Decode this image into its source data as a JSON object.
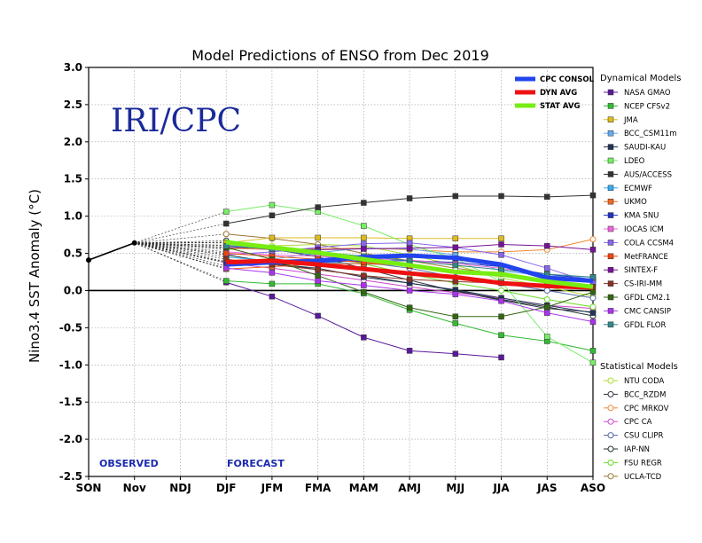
{
  "chart_data": {
    "type": "line",
    "title": "Model Predictions of ENSO from Dec 2019",
    "ylabel": "Nino3.4 SST Anomaly (°C)",
    "xlabel": "",
    "categories": [
      "SON",
      "Nov",
      "NDJ",
      "DJF",
      "JFM",
      "FMA",
      "MAM",
      "AMJ",
      "MJJ",
      "JJA",
      "JAS",
      "ASO"
    ],
    "ylim": [
      -2.5,
      3.0
    ],
    "yticks": [
      "3.0",
      "2.5",
      "2.0",
      "1.5",
      "1.0",
      "0.5",
      "0.0",
      "-0.5",
      "-1.0",
      "-1.5",
      "-2.0",
      "-2.5"
    ],
    "grid": true,
    "legend_position": "right",
    "watermark": "IRI/CPC",
    "observed_label": "OBSERVED",
    "forecast_label": "FORECAST",
    "observed": {
      "x": [
        "SON",
        "Nov"
      ],
      "values": [
        0.41,
        0.64
      ]
    },
    "headline_series": [
      {
        "name": "CPC CONSOL",
        "color": "#2244ee",
        "values": [
          0.35,
          0.38,
          0.4,
          0.45,
          0.47,
          0.44,
          0.35,
          0.17,
          0.13
        ]
      },
      {
        "name": "DYN AVG",
        "color": "#ee1111",
        "values": [
          0.38,
          0.4,
          0.35,
          0.29,
          0.23,
          0.18,
          0.1,
          0.06,
          0.04
        ]
      },
      {
        "name": "STAT AVG",
        "color": "#77ee11",
        "values": [
          0.65,
          0.58,
          0.51,
          0.42,
          0.34,
          0.25,
          0.22,
          0.12,
          0.05
        ]
      }
    ],
    "dynamical_heading": "Dynamical Models",
    "statistical_heading": "Statistical Models",
    "dynamical_models": [
      {
        "name": "NASA GMAO",
        "color": "#5a189a",
        "values": [
          0.11,
          -0.08,
          -0.34,
          -0.63,
          -0.81,
          -0.85,
          -0.9,
          null,
          null
        ]
      },
      {
        "name": "NCEP CFSv2",
        "color": "#33bb33",
        "values": [
          0.13,
          0.09,
          0.09,
          -0.04,
          -0.26,
          -0.44,
          -0.6,
          -0.68,
          -0.81
        ]
      },
      {
        "name": "JMA",
        "color": "#ddbb22",
        "values": [
          0.64,
          0.71,
          0.71,
          0.71,
          0.7,
          0.7,
          0.7,
          null,
          null
        ]
      },
      {
        "name": "BCC_CSM11m",
        "color": "#66aaee",
        "values": [
          0.33,
          0.42,
          0.51,
          0.57,
          0.56,
          0.48,
          0.26,
          0.2,
          0.18
        ]
      },
      {
        "name": "SAUDI-KAU",
        "color": "#223355",
        "values": [
          0.39,
          0.36,
          0.3,
          0.18,
          0.1,
          0.01,
          -0.1,
          -0.2,
          -0.3
        ]
      },
      {
        "name": "LDEO",
        "color": "#77ee66",
        "values": [
          1.06,
          1.15,
          1.06,
          0.87,
          0.62,
          0.43,
          0.12,
          -0.62,
          -0.97
        ]
      },
      {
        "name": "AUS/ACCESS",
        "color": "#333333",
        "values": [
          0.9,
          1.01,
          1.12,
          1.18,
          1.24,
          1.27,
          1.27,
          1.26,
          1.28
        ]
      },
      {
        "name": "ECMWF",
        "color": "#33aaee",
        "values": [
          0.45,
          0.4,
          0.38,
          0.36,
          0.33,
          null,
          null,
          null,
          null
        ]
      },
      {
        "name": "UKMO",
        "color": "#ee6622",
        "values": [
          0.29,
          0.32,
          0.36,
          0.36,
          0.34,
          null,
          null,
          null,
          null
        ]
      },
      {
        "name": "KMA SNU",
        "color": "#2233bb",
        "values": [
          0.38,
          0.36,
          0.38,
          0.4,
          0.4,
          0.38,
          0.32,
          0.22,
          0.15
        ]
      },
      {
        "name": "IOCAS ICM",
        "color": "#ee66dd",
        "values": [
          0.52,
          0.48,
          0.46,
          0.43,
          0.41,
          0.36,
          0.3,
          0.2,
          0.13
        ]
      },
      {
        "name": "COLA CCSM4",
        "color": "#8866ee",
        "values": [
          0.48,
          0.52,
          0.58,
          0.63,
          0.64,
          0.58,
          0.48,
          0.3,
          0.1
        ]
      },
      {
        "name": "MetFRANCE",
        "color": "#ee4411",
        "values": [
          0.5,
          0.46,
          0.42,
          0.38,
          0.33,
          null,
          null,
          null,
          null
        ]
      },
      {
        "name": "SINTEX-F",
        "color": "#771199",
        "values": [
          0.58,
          0.57,
          0.55,
          0.56,
          0.57,
          0.58,
          0.62,
          0.6,
          0.55
        ]
      },
      {
        "name": "CS-IRI-MM",
        "color": "#883322",
        "values": [
          0.42,
          0.35,
          0.28,
          0.2,
          0.15,
          0.12,
          0.1,
          0.08,
          0.05
        ]
      },
      {
        "name": "GFDL CM2.1",
        "color": "#336611",
        "values": [
          0.58,
          0.42,
          0.2,
          -0.02,
          -0.23,
          -0.35,
          -0.35,
          -0.22,
          -0.02
        ]
      },
      {
        "name": "CMC CANSIP",
        "color": "#aa33ee",
        "values": [
          0.3,
          0.24,
          0.13,
          0.07,
          0.0,
          -0.05,
          -0.14,
          -0.3,
          -0.42
        ]
      },
      {
        "name": "GFDL FLOR",
        "color": "#338888",
        "values": [
          0.6,
          0.56,
          0.52,
          0.46,
          0.4,
          0.34,
          0.28,
          0.22,
          0.18
        ]
      }
    ],
    "statistical_models": [
      {
        "name": "NTU CODA",
        "color": "#aadd33",
        "values": [
          0.55,
          0.6,
          0.62,
          0.6,
          0.48,
          0.34,
          0.17,
          0.05,
          -0.08
        ]
      },
      {
        "name": "BCC_RZDM",
        "color": "#333344",
        "values": [
          0.67,
          0.56,
          0.45,
          0.3,
          0.14,
          -0.01,
          -0.13,
          -0.24,
          -0.29
        ]
      },
      {
        "name": "CPC MRKOV",
        "color": "#ee8833",
        "values": [
          0.57,
          0.55,
          0.56,
          0.57,
          0.55,
          0.52,
          0.52,
          0.55,
          0.69
        ]
      },
      {
        "name": "CPC CA",
        "color": "#cc44cc",
        "values": [
          0.37,
          0.3,
          0.22,
          0.14,
          0.05,
          -0.03,
          -0.1,
          -0.2,
          -0.24
        ]
      },
      {
        "name": "CSU CLIPR",
        "color": "#5566aa",
        "values": [
          0.61,
          0.55,
          0.47,
          0.38,
          0.3,
          0.18,
          0.1,
          0.0,
          -0.1
        ]
      },
      {
        "name": "IAP-NN",
        "color": "#223333",
        "values": [
          0.48,
          0.38,
          0.28,
          0.2,
          0.1,
          0.0,
          -0.12,
          -0.22,
          -0.34
        ]
      },
      {
        "name": "FSU REGR",
        "color": "#66dd22",
        "values": [
          0.65,
          0.58,
          0.48,
          0.36,
          0.22,
          0.1,
          0.0,
          -0.12,
          -0.22
        ]
      },
      {
        "name": "UCLA-TCD",
        "color": "#997733",
        "values": [
          0.76,
          0.7,
          0.62,
          0.5,
          0.4,
          0.3,
          0.22,
          0.12,
          0.06
        ]
      }
    ]
  }
}
